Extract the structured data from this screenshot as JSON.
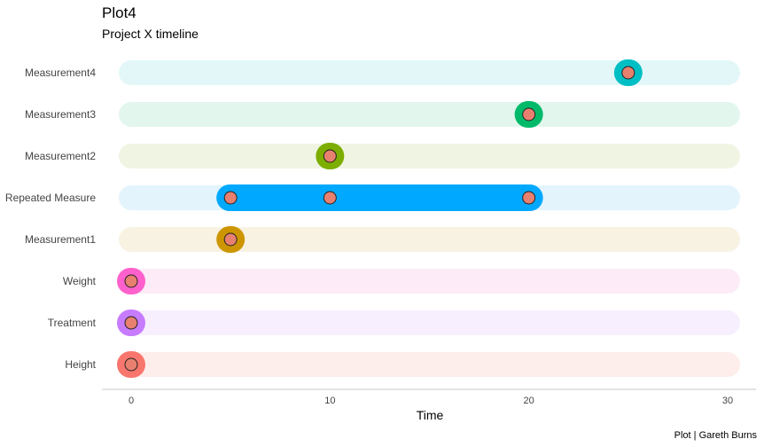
{
  "chart_data": {
    "type": "timeline",
    "title": "Plot4",
    "subtitle": "Project X timeline",
    "xlabel": "Time",
    "caption": "Plot | Gareth Burns",
    "xlim": [
      0,
      30
    ],
    "xticks": [
      0,
      10,
      20,
      30
    ],
    "grid": false,
    "point_color": "#E8806F",
    "rows": [
      {
        "label": "Measurement4",
        "start": 25,
        "end": 25,
        "points": [
          25
        ],
        "color": "#00BFC4",
        "track": "#E3F7F8"
      },
      {
        "label": "Measurement3",
        "start": 20,
        "end": 20,
        "points": [
          20
        ],
        "color": "#00BA6A",
        "track": "#E2F6ED"
      },
      {
        "label": "Measurement2",
        "start": 10,
        "end": 10,
        "points": [
          10
        ],
        "color": "#7CAE00",
        "track": "#F0F5E3"
      },
      {
        "label": "Repeated Measure",
        "start": 5,
        "end": 20,
        "points": [
          5,
          10,
          20
        ],
        "color": "#00A9FF",
        "track": "#E3F4FD"
      },
      {
        "label": "Measurement1",
        "start": 5,
        "end": 5,
        "points": [
          5
        ],
        "color": "#CD9600",
        "track": "#F8F2E3"
      },
      {
        "label": "Weight",
        "start": 0,
        "end": 0,
        "points": [
          0
        ],
        "color": "#FF61CC",
        "track": "#FDEBF7"
      },
      {
        "label": "Treatment",
        "start": 0,
        "end": 0,
        "points": [
          0
        ],
        "color": "#C77CFF",
        "track": "#F7EFFD"
      },
      {
        "label": "Height",
        "start": 0,
        "end": 0,
        "points": [
          0
        ],
        "color": "#F8766D",
        "track": "#FDEEEC"
      }
    ]
  }
}
